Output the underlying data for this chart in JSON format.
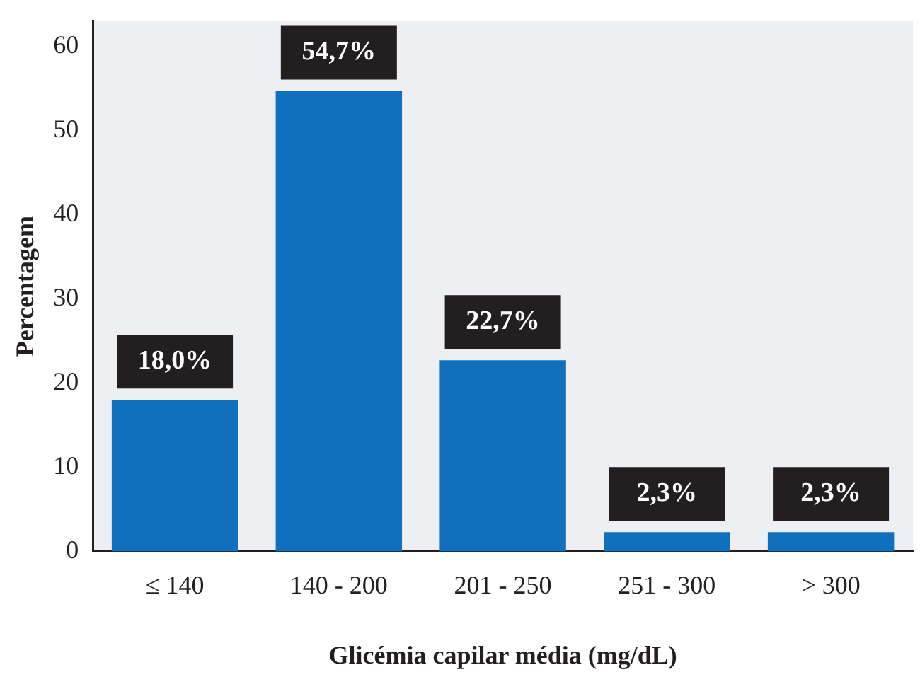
{
  "chart_data": {
    "type": "bar",
    "xlabel": "Glicémia capilar média (mg/dL)",
    "ylabel": "Percentagem",
    "categories": [
      "≤ 140",
      "140 - 200",
      "201 - 250",
      "251 - 300",
      "> 300"
    ],
    "values": [
      18.0,
      54.7,
      22.7,
      2.3,
      2.3
    ],
    "value_labels": [
      "18,0%",
      "54,7%",
      "22,7%",
      "2,3%",
      "2,3%"
    ],
    "color": "#1170bd",
    "ylim": [
      0,
      63
    ],
    "yticks": [
      0,
      10,
      20,
      30,
      40,
      50,
      60
    ],
    "grid": false,
    "legend": false
  }
}
